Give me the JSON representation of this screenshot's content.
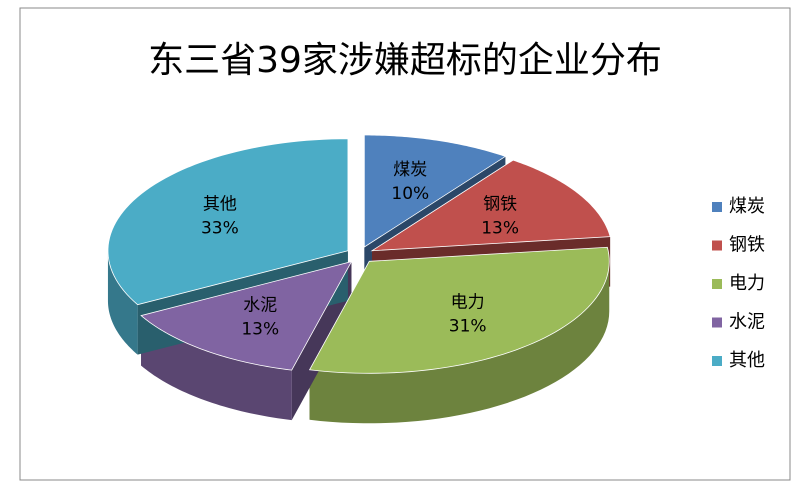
{
  "chart_data": {
    "type": "pie3d",
    "title": "东三省39家涉嫌超标的企业分布",
    "categories": [
      "煤炭",
      "钢铁",
      "电力",
      "水泥",
      "其他"
    ],
    "values": [
      10,
      13,
      31,
      13,
      33
    ],
    "value_labels": [
      "10%",
      "13%",
      "31%",
      "13%",
      "33%"
    ],
    "colors": [
      "#4f81bd",
      "#c0504d",
      "#9bbb59",
      "#8064a2",
      "#4bacc6"
    ],
    "legend": "right"
  }
}
